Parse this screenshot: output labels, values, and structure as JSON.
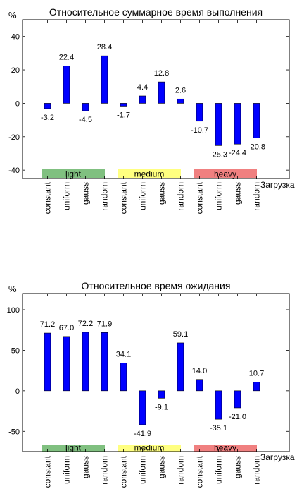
{
  "chart_data": [
    {
      "type": "bar",
      "title": "Относительное суммарное время выполнения",
      "ylabel": "%",
      "xlabel": "Загрузка",
      "ylim": [
        -45,
        50
      ],
      "yticks": [
        -40,
        -20,
        0,
        20,
        40
      ],
      "grid": false,
      "categories": [
        "constant",
        "uniform",
        "gauss",
        "random",
        "constant",
        "uniform",
        "gauss",
        "random",
        "constant",
        "uniform",
        "gauss",
        "random"
      ],
      "values": [
        -3.2,
        22.4,
        -4.5,
        28.4,
        -1.7,
        4.4,
        12.8,
        2.6,
        -10.7,
        -25.3,
        -24.4,
        -20.8
      ],
      "value_labels": [
        "-3.2",
        "22.4",
        "-4.5",
        "28.4",
        "-1.7",
        "4.4",
        "12.8",
        "2.6",
        "-10.7",
        "-25.3",
        "-24.4",
        "-20.8"
      ],
      "bar_color": "#0000ff",
      "groups": [
        {
          "label": "light",
          "color": "#80c080"
        },
        {
          "label": "medium",
          "color": "#ffff80"
        },
        {
          "label": "heavy",
          "color": "#f08080"
        }
      ]
    },
    {
      "type": "bar",
      "title": "Относительное время ожидания",
      "ylabel": "%",
      "xlabel": "Загрузка",
      "ylim": [
        -75,
        120
      ],
      "yticks": [
        -50,
        0,
        50,
        100
      ],
      "grid": false,
      "categories": [
        "constant",
        "uniform",
        "gauss",
        "random",
        "constant",
        "uniform",
        "gauss",
        "random",
        "constant",
        "uniform",
        "gauss",
        "random"
      ],
      "values": [
        71.2,
        67.0,
        72.2,
        71.9,
        34.1,
        -41.9,
        -9.1,
        59.1,
        14.0,
        -35.1,
        -21.0,
        10.7
      ],
      "value_labels": [
        "71.2",
        "67.0",
        "72.2",
        "71.9",
        "34.1",
        "-41.9",
        "-9.1",
        "59.1",
        "14.0",
        "-35.1",
        "-21.0",
        "10.7"
      ],
      "bar_color": "#0000ff",
      "groups": [
        {
          "label": "light",
          "color": "#80c080"
        },
        {
          "label": "medium",
          "color": "#ffff80"
        },
        {
          "label": "heavy",
          "color": "#f08080"
        }
      ]
    }
  ]
}
